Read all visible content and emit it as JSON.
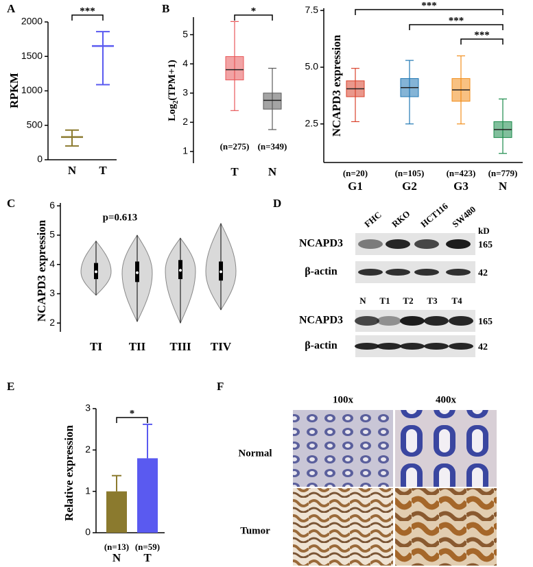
{
  "chart_data": [
    {
      "type": "errorbar",
      "panel_label": "A",
      "y_label": "RPKM",
      "categories": [
        "N",
        "T"
      ],
      "values": [
        330,
        1650
      ],
      "lower": [
        200,
        1090
      ],
      "upper": [
        430,
        1860
      ],
      "colors": [
        "#8b7a2e",
        "#5a5af0"
      ],
      "ylim": [
        0,
        2000
      ],
      "yticks": [
        0,
        500,
        1000,
        1500,
        2000
      ],
      "annotations": [
        "***"
      ]
    },
    {
      "type": "box",
      "panel_label": "B",
      "y_label": {
        "base": "Log",
        "sub": "2",
        "rest": "(TPM+1)"
      },
      "categories": [
        "T",
        "N"
      ],
      "n_labels": [
        "(n=275)",
        "(n=349)"
      ],
      "min": [
        2.4,
        1.75
      ],
      "q1": [
        3.45,
        2.45
      ],
      "median": [
        3.8,
        2.75
      ],
      "q3": [
        4.25,
        3.0
      ],
      "max": [
        5.45,
        3.85
      ],
      "colors": [
        "#e8585a",
        "#5a5a5a"
      ],
      "ylim": [
        0.6,
        5.6
      ],
      "yticks": [
        1,
        2,
        3,
        4,
        5
      ],
      "annotations": [
        "*"
      ]
    },
    {
      "type": "box",
      "y_label": "NCAPD3 expression",
      "categories": [
        "G1",
        "G2",
        "G3",
        "N"
      ],
      "n_labels": [
        "(n=20)",
        "(n=105)",
        "(n=423)",
        "(n=779)"
      ],
      "min": [
        2.6,
        2.5,
        2.5,
        1.2
      ],
      "q1": [
        3.7,
        3.7,
        3.5,
        1.9
      ],
      "median": [
        4.05,
        4.1,
        4.0,
        2.25
      ],
      "q3": [
        4.4,
        4.5,
        4.5,
        2.6
      ],
      "max": [
        4.95,
        5.3,
        5.5,
        3.6
      ],
      "colors": [
        "#d9412b",
        "#1f77b4",
        "#f28e1c",
        "#1a8a4a"
      ],
      "ylim": [
        0.8,
        7.6
      ],
      "yticks": [
        2.5,
        {
          "value": 5,
          "label": "5.0"
        },
        7.5
      ],
      "annotations": [
        "***",
        "***",
        "***"
      ]
    },
    {
      "type": "violin",
      "panel_label": "C",
      "y_label": "NCAPD3 expression",
      "categories": [
        "TI",
        "TII",
        "TIII",
        "TIV"
      ],
      "min": [
        2.95,
        2.05,
        2.0,
        2.45
      ],
      "q1": [
        3.5,
        3.4,
        3.5,
        3.45
      ],
      "median": [
        3.75,
        3.72,
        3.8,
        3.75
      ],
      "q3": [
        4.05,
        4.1,
        4.15,
        4.1
      ],
      "max": [
        4.8,
        5.0,
        4.9,
        5.4
      ],
      "color": "#d9d9d9",
      "ylim": [
        1.7,
        6.1
      ],
      "yticks": [
        2,
        3,
        4,
        5,
        6
      ],
      "annotations": [
        "p=0.613"
      ]
    },
    {
      "type": "bar",
      "panel_label": "E",
      "y_label": "Relative expression",
      "categories": [
        "N",
        "T"
      ],
      "n_labels": [
        "(n=13)",
        "(n=59)"
      ],
      "values": [
        1.0,
        1.8
      ],
      "errors": [
        0.38,
        0.82
      ],
      "colors": [
        "#8b7a2e",
        "#5a5af0"
      ],
      "ylim": [
        0,
        3
      ],
      "yticks": [
        0,
        1,
        2,
        3
      ],
      "annotations": [
        "*"
      ]
    }
  ],
  "western_blot": {
    "panel_label": "D",
    "top": {
      "lanes": [
        "FHC",
        "RKO",
        "HCT116",
        "SW480"
      ],
      "unit": "kD",
      "rows": [
        {
          "label": "NCAPD3",
          "size": 165
        },
        {
          "label": "β-actin",
          "size": 42
        }
      ]
    },
    "bottom": {
      "lanes": [
        "N",
        "T1",
        "T2",
        "T3",
        "T4"
      ],
      "rows": [
        {
          "label": "NCAPD3",
          "size": 165
        },
        {
          "label": "β-actin",
          "size": 42
        }
      ]
    }
  },
  "ihc": {
    "panel_label": "F",
    "columns": [
      "100x",
      "400x"
    ],
    "rows": [
      "Normal",
      "Tumor"
    ]
  }
}
